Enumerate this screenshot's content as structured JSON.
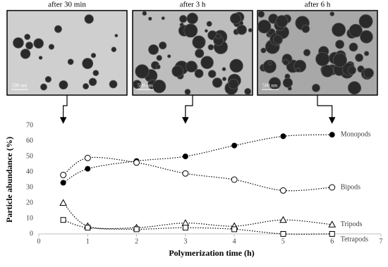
{
  "images": [
    {
      "label": "after 30 min",
      "scale_bar": "500 nm"
    },
    {
      "label": "after 3 h",
      "scale_bar": "500 nm"
    },
    {
      "label": "after 6 h",
      "scale_bar": "500 nm"
    }
  ],
  "chart_data": {
    "type": "scatter",
    "x_label": "Polymerization time (h)",
    "y_label": "Particle abundance (%)",
    "x": [
      0.5,
      1,
      2,
      3,
      4,
      5,
      6
    ],
    "series": [
      {
        "name": "Monopods",
        "marker": "filled-circle",
        "color": "#000000",
        "values": [
          33,
          42,
          47,
          50,
          57,
          63,
          64
        ]
      },
      {
        "name": "Bipods",
        "marker": "open-circle",
        "color": "#000000",
        "values": [
          38,
          49,
          46,
          39,
          35,
          28,
          30
        ]
      },
      {
        "name": "Tripods",
        "marker": "triangle",
        "color": "#000000",
        "values": [
          20,
          5,
          4,
          7,
          5,
          9,
          6
        ]
      },
      {
        "name": "Tetrapods",
        "marker": "square",
        "color": "#000000",
        "values": [
          9,
          4,
          3,
          4,
          3,
          0,
          0
        ]
      }
    ],
    "xlim": [
      0,
      7
    ],
    "xticks": [
      0,
      1,
      2,
      3,
      4,
      5,
      6,
      7
    ],
    "ylim": [
      0,
      70
    ],
    "yticks": [
      0,
      10,
      20,
      30,
      40,
      50,
      60,
      70
    ],
    "grid": false
  }
}
